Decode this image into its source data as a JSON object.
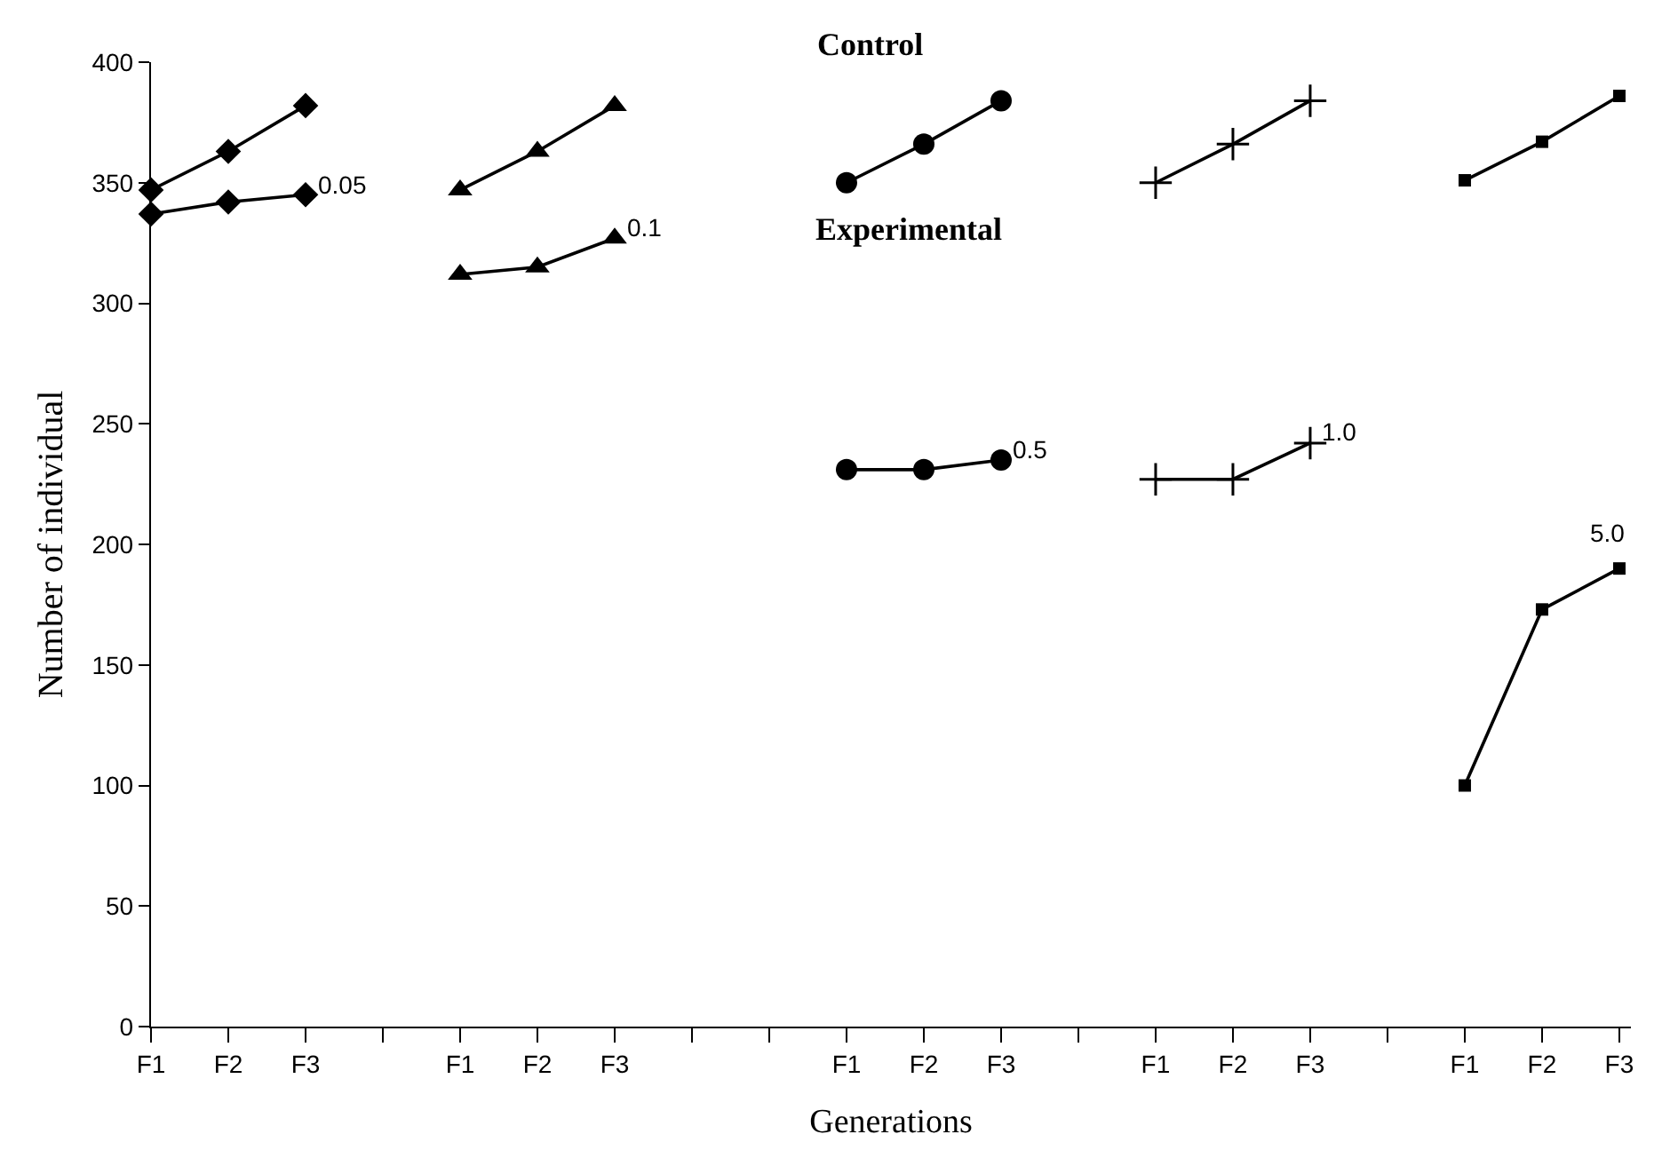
{
  "chart_data": {
    "type": "line",
    "xlabel": "Generations",
    "ylabel": "Number of individual",
    "categories": [
      "F1",
      "F2",
      "F3",
      null,
      "F1",
      "F2",
      "F3",
      null,
      null,
      "F1",
      "F2",
      "F3",
      null,
      "F1",
      "F2",
      "F3",
      null,
      "F1",
      "F2",
      "F3"
    ],
    "series": [
      {
        "color": "#000000",
        "marker": "diamond",
        "values": [
          347,
          363,
          382,
          null,
          null,
          null,
          null,
          null,
          null,
          null,
          null,
          null,
          null,
          null,
          null,
          null,
          null,
          null,
          null,
          null
        ]
      },
      {
        "name": "0.05",
        "color": "#000000",
        "marker": "diamond",
        "values": [
          337,
          342,
          345,
          null,
          null,
          null,
          null,
          null,
          null,
          null,
          null,
          null,
          null,
          null,
          null,
          null,
          null,
          null,
          null,
          null
        ]
      },
      {
        "color": "#000000",
        "marker": "triangle",
        "values": [
          null,
          null,
          null,
          null,
          347,
          363,
          382,
          null,
          null,
          null,
          null,
          null,
          null,
          null,
          null,
          null,
          null,
          null,
          null,
          null
        ]
      },
      {
        "name": "0.1",
        "color": "#000000",
        "marker": "triangle",
        "values": [
          null,
          null,
          null,
          null,
          312,
          315,
          327,
          null,
          null,
          null,
          null,
          null,
          null,
          null,
          null,
          null,
          null,
          null,
          null,
          null
        ]
      },
      {
        "color": "#000000",
        "marker": "circle",
        "values": [
          null,
          null,
          null,
          null,
          null,
          null,
          null,
          null,
          null,
          350,
          366,
          384,
          null,
          null,
          null,
          null,
          null,
          null,
          null,
          null
        ]
      },
      {
        "name": "0.5",
        "color": "#000000",
        "marker": "circle",
        "values": [
          null,
          null,
          null,
          null,
          null,
          null,
          null,
          null,
          null,
          231,
          231,
          235,
          null,
          null,
          null,
          null,
          null,
          null,
          null,
          null
        ]
      },
      {
        "color": "#000000",
        "marker": "cross",
        "values": [
          null,
          null,
          null,
          null,
          null,
          null,
          null,
          null,
          null,
          null,
          null,
          null,
          null,
          350,
          366,
          384,
          null,
          null,
          null,
          null
        ]
      },
      {
        "name": "1.0",
        "color": "#000000",
        "marker": "cross",
        "values": [
          null,
          null,
          null,
          null,
          null,
          null,
          null,
          null,
          null,
          null,
          null,
          null,
          null,
          227,
          227,
          242,
          null,
          null,
          null,
          null
        ]
      },
      {
        "color": "#000000",
        "marker": "square",
        "values": [
          null,
          null,
          null,
          null,
          null,
          null,
          null,
          null,
          null,
          null,
          null,
          null,
          null,
          null,
          null,
          null,
          null,
          351,
          367,
          386
        ]
      },
      {
        "name": "5.0",
        "color": "#000000",
        "marker": "square",
        "values": [
          null,
          null,
          null,
          null,
          null,
          null,
          null,
          null,
          null,
          null,
          null,
          null,
          null,
          null,
          null,
          null,
          null,
          100,
          173,
          190
        ]
      }
    ],
    "annotations": [
      "Control",
      "Experimental"
    ],
    "ylim": [
      0,
      400
    ],
    "yticks": [
      0,
      50,
      100,
      150,
      200,
      250,
      300,
      350,
      400
    ],
    "grid": false,
    "legend": false
  }
}
